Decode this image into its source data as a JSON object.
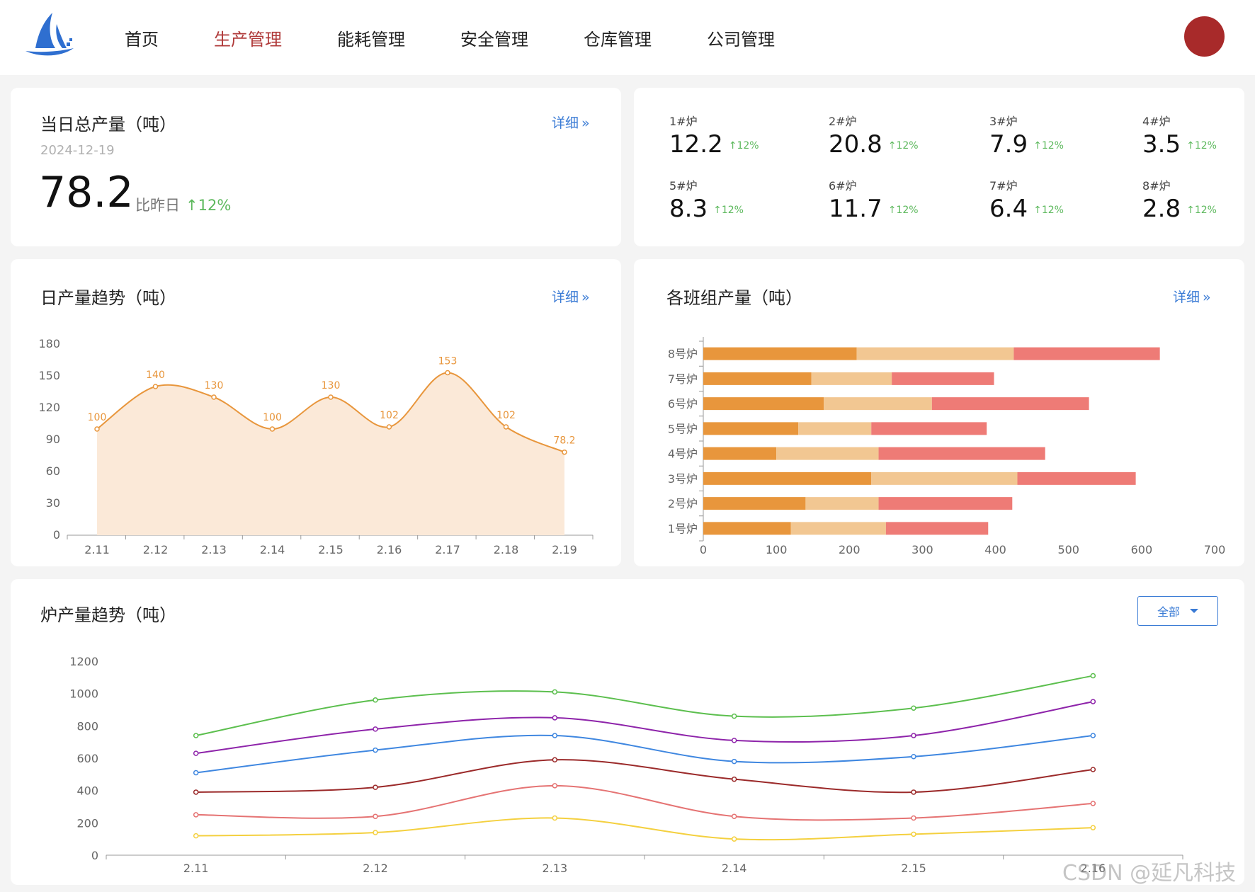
{
  "nav": {
    "items": [
      "首页",
      "生产管理",
      "能耗管理",
      "安全管理",
      "仓库管理",
      "公司管理"
    ],
    "active_index": 1
  },
  "colors": {
    "accent": "#3a7bd5",
    "active_nav": "#b03a3a",
    "up": "#5cb85c",
    "avatar": "#a82a2a"
  },
  "summary": {
    "title": "当日总产量（吨）",
    "detail": "详细",
    "date": "2024-12-19",
    "value": "78.2",
    "compare_label": "比昨日",
    "compare_pct": "12%"
  },
  "furnaces": [
    {
      "label": "1#炉",
      "value": "12.2",
      "pct": "12%"
    },
    {
      "label": "2#炉",
      "value": "20.8",
      "pct": "12%"
    },
    {
      "label": "3#炉",
      "value": "7.9",
      "pct": "12%"
    },
    {
      "label": "4#炉",
      "value": "3.5",
      "pct": "12%"
    },
    {
      "label": "5#炉",
      "value": "8.3",
      "pct": "12%"
    },
    {
      "label": "6#炉",
      "value": "11.7",
      "pct": "12%"
    },
    {
      "label": "7#炉",
      "value": "6.4",
      "pct": "12%"
    },
    {
      "label": "8#炉",
      "value": "2.8",
      "pct": "12%"
    }
  ],
  "daily": {
    "title": "日产量趋势（吨）",
    "detail": "详细"
  },
  "shift": {
    "title": "各班组产量（吨）",
    "detail": "详细"
  },
  "furnace_trend": {
    "title": "炉产量趋势（吨）",
    "filter": "全部"
  },
  "watermark": "CSDN @延凡科技",
  "chart_data": [
    {
      "type": "area",
      "x": [
        "2.11",
        "2.12",
        "2.13",
        "2.14",
        "2.15",
        "2.16",
        "2.17",
        "2.18",
        "2.19"
      ],
      "values": [
        100,
        140,
        130,
        100,
        130,
        102,
        153,
        102,
        78.2
      ],
      "data_labels": [
        "100",
        "140",
        "130",
        "100",
        "130",
        "102",
        "153",
        "102",
        "78.2"
      ],
      "yticks": [
        0,
        30,
        60,
        90,
        120,
        150,
        180
      ],
      "ylim": [
        0,
        180
      ],
      "color": "#e8963c"
    },
    {
      "type": "bar",
      "orientation": "horizontal",
      "stacked": true,
      "categories": [
        "1号炉",
        "2号炉",
        "3号炉",
        "4号炉",
        "5号炉",
        "6号炉",
        "7号炉",
        "8号炉"
      ],
      "series": [
        {
          "values": [
            120,
            140,
            230,
            100,
            130,
            165,
            148,
            210
          ],
          "color": "#e8963c"
        },
        {
          "values": [
            130,
            100,
            200,
            140,
            100,
            148,
            110,
            215
          ],
          "color": "#f2c792"
        },
        {
          "values": [
            140,
            183,
            162,
            228,
            158,
            215,
            140,
            200
          ],
          "color": "#ee7b76"
        }
      ],
      "xticks": [
        0,
        100,
        200,
        300,
        400,
        500,
        600,
        700
      ],
      "xlim": [
        0,
        700
      ]
    },
    {
      "type": "line",
      "x": [
        "2.11",
        "2.12",
        "2.13",
        "2.14",
        "2.15",
        "2.16"
      ],
      "series": [
        {
          "values": [
            740,
            960,
            1010,
            860,
            910,
            1110
          ],
          "color": "#5cbf4e"
        },
        {
          "values": [
            630,
            780,
            850,
            710,
            740,
            950
          ],
          "color": "#8e24aa"
        },
        {
          "values": [
            510,
            650,
            740,
            580,
            610,
            740
          ],
          "color": "#3f87e0"
        },
        {
          "values": [
            390,
            420,
            590,
            470,
            390,
            530
          ],
          "color": "#9b2a2a"
        },
        {
          "values": [
            250,
            240,
            430,
            240,
            230,
            320
          ],
          "color": "#e57373"
        },
        {
          "values": [
            120,
            140,
            230,
            100,
            130,
            170
          ],
          "color": "#f4d03f"
        }
      ],
      "yticks": [
        0,
        200,
        400,
        600,
        800,
        1000,
        1200
      ],
      "ylim": [
        0,
        1200
      ]
    }
  ]
}
